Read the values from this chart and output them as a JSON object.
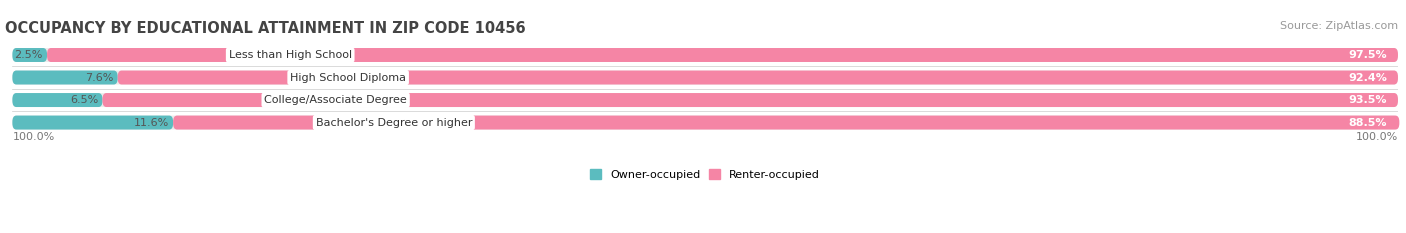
{
  "title": "OCCUPANCY BY EDUCATIONAL ATTAINMENT IN ZIP CODE 10456",
  "source": "Source: ZipAtlas.com",
  "categories": [
    "Less than High School",
    "High School Diploma",
    "College/Associate Degree",
    "Bachelor's Degree or higher"
  ],
  "owner_pct": [
    2.5,
    7.6,
    6.5,
    11.6
  ],
  "renter_pct": [
    97.5,
    92.4,
    93.5,
    88.5
  ],
  "owner_color": "#5bbcbf",
  "renter_color": "#f585a5",
  "bg_color": "#ffffff",
  "bar_bg_color": "#ebebeb",
  "title_fontsize": 10.5,
  "source_fontsize": 8,
  "label_fontsize": 8,
  "cat_fontsize": 8,
  "axis_label_fontsize": 8,
  "bar_height": 0.62,
  "legend_label_owner": "Owner-occupied",
  "legend_label_renter": "Renter-occupied",
  "left_axis_label": "100.0%",
  "right_axis_label": "100.0%"
}
